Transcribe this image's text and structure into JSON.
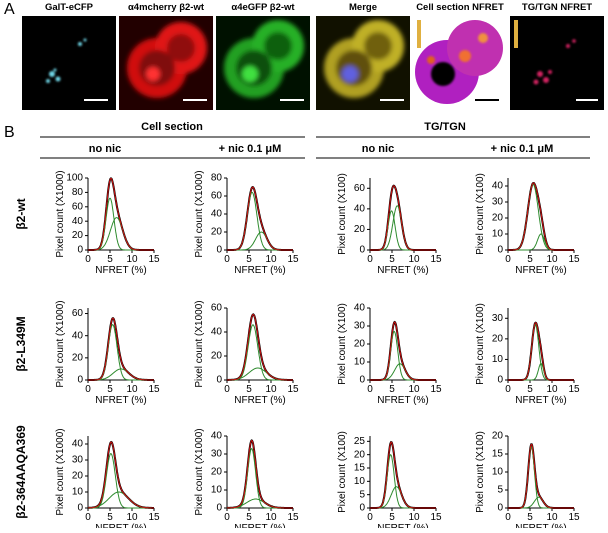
{
  "panel_a": {
    "label": "A",
    "images": [
      "GalT-eCFP",
      "α4mcherry β2-wt",
      "α4eGFP β2-wt",
      "Merge",
      "Cell section NFRET",
      "TG/TGN NFRET"
    ]
  },
  "panel_b": {
    "label": "B",
    "groups": [
      {
        "title": "Cell section",
        "conditions": [
          "no nic",
          "+ nic 0.1 μM"
        ]
      },
      {
        "title": "TG/TGN",
        "conditions": [
          "no nic",
          "+ nic 0.1 μM"
        ]
      }
    ],
    "rows": [
      "β2-wt",
      "β2-L349M",
      "β2-364AAQA369"
    ],
    "xlabel": "NFRET (%)",
    "xlim": [
      0,
      15
    ],
    "xticks": [
      0,
      5,
      10,
      15
    ],
    "charts": [
      {
        "type": "line",
        "ylabel": "Pixel count (X1000)",
        "ylim": [
          0,
          100
        ],
        "yticks": [
          0,
          20,
          40,
          60,
          80,
          100
        ],
        "components": [
          {
            "amplitude": 72,
            "center": 5,
            "sigma": 0.9
          },
          {
            "amplitude": 45,
            "center": 6.5,
            "sigma": 1.4
          }
        ]
      },
      {
        "type": "line",
        "ylabel": "Pixel count (X1000)",
        "ylim": [
          0,
          80
        ],
        "yticks": [
          0,
          20,
          40,
          60,
          80
        ],
        "components": [
          {
            "amplitude": 64,
            "center": 5.7,
            "sigma": 1.1
          },
          {
            "amplitude": 20,
            "center": 7.8,
            "sigma": 1.3
          }
        ]
      },
      {
        "type": "line",
        "ylabel": "Pixel count (X100)",
        "ylim": [
          0,
          70
        ],
        "yticks": [
          0,
          20,
          40,
          60
        ],
        "components": [
          {
            "amplitude": 38,
            "center": 4.9,
            "sigma": 0.8
          },
          {
            "amplitude": 43,
            "center": 6.2,
            "sigma": 1.0
          }
        ]
      },
      {
        "type": "line",
        "ylabel": "Pixel count (X100)",
        "ylim": [
          0,
          45
        ],
        "yticks": [
          0,
          10,
          20,
          30,
          40
        ],
        "components": [
          {
            "amplitude": 41,
            "center": 5.7,
            "sigma": 1.2
          },
          {
            "amplitude": 10,
            "center": 7.5,
            "sigma": 0.8
          }
        ]
      },
      {
        "type": "line",
        "ylabel": "Pixel count (X1000)",
        "ylim": [
          0,
          65
        ],
        "yticks": [
          0,
          20,
          40,
          60
        ],
        "components": [
          {
            "amplitude": 50,
            "center": 5.6,
            "sigma": 1.0
          },
          {
            "amplitude": 10,
            "center": 7.5,
            "sigma": 1.8
          }
        ]
      },
      {
        "type": "line",
        "ylabel": "Pixel count (X1000)",
        "ylim": [
          0,
          60
        ],
        "yticks": [
          0,
          20,
          40,
          60
        ],
        "components": [
          {
            "amplitude": 46,
            "center": 5.9,
            "sigma": 1.1
          },
          {
            "amplitude": 10,
            "center": 7,
            "sigma": 2
          }
        ]
      },
      {
        "type": "line",
        "ylabel": "Pixel count (X100)",
        "ylim": [
          0,
          40
        ],
        "yticks": [
          0,
          10,
          20,
          30,
          40
        ],
        "components": [
          {
            "amplitude": 27,
            "center": 5.5,
            "sigma": 0.8
          },
          {
            "amplitude": 9,
            "center": 6.8,
            "sigma": 1.2
          }
        ]
      },
      {
        "type": "line",
        "ylabel": "Pixel count (X100)",
        "ylim": [
          0,
          35
        ],
        "yticks": [
          0,
          10,
          20,
          30
        ],
        "components": [
          {
            "amplitude": 27,
            "center": 6.2,
            "sigma": 0.8
          },
          {
            "amplitude": 8,
            "center": 7.5,
            "sigma": 0.6
          }
        ]
      },
      {
        "type": "line",
        "ylabel": "Pixel count (X1000)",
        "ylim": [
          0,
          45
        ],
        "yticks": [
          0,
          10,
          20,
          30,
          40
        ],
        "components": [
          {
            "amplitude": 34,
            "center": 5.2,
            "sigma": 1.0
          },
          {
            "amplitude": 10,
            "center": 7,
            "sigma": 2.2
          }
        ]
      },
      {
        "type": "line",
        "ylabel": "Pixel count (X1000)",
        "ylim": [
          0,
          40
        ],
        "yticks": [
          0,
          10,
          20,
          30,
          40
        ],
        "components": [
          {
            "amplitude": 33,
            "center": 5.6,
            "sigma": 0.9
          },
          {
            "amplitude": 5,
            "center": 6.5,
            "sigma": 2
          }
        ]
      },
      {
        "type": "line",
        "ylabel": "Pixel count (X100)",
        "ylim": [
          0,
          27
        ],
        "yticks": [
          0,
          5,
          10,
          15,
          20,
          25
        ],
        "components": [
          {
            "amplitude": 20,
            "center": 4.7,
            "sigma": 0.8
          },
          {
            "amplitude": 8,
            "center": 6,
            "sigma": 1.2
          }
        ]
      },
      {
        "type": "line",
        "ylabel": "Pixel count (X100)",
        "ylim": [
          0,
          20
        ],
        "yticks": [
          0,
          5,
          10,
          15,
          20
        ],
        "components": [
          {
            "amplitude": 17,
            "center": 5.3,
            "sigma": 0.7
          },
          {
            "amplitude": 3,
            "center": 7,
            "sigma": 1
          }
        ]
      }
    ]
  }
}
